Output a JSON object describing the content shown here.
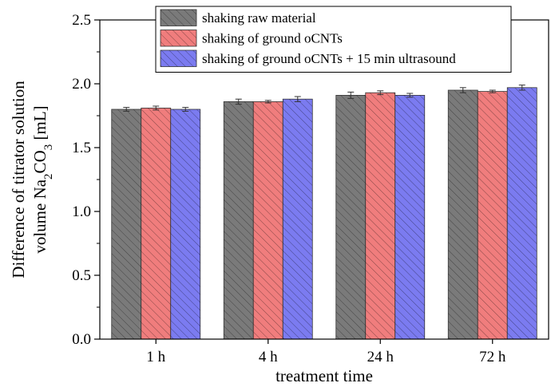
{
  "chart_data": {
    "type": "bar",
    "title": "",
    "xlabel": "treatment time",
    "ylabel": {
      "line1": "Difference of titrator solution",
      "line2_prefix": "volume Na",
      "sub1": "2",
      "mid": "CO",
      "sub2": "3",
      "suffix": " [mL]"
    },
    "categories": [
      "1 h",
      "4 h",
      "24 h",
      "72 h"
    ],
    "ylim": [
      0.0,
      2.5
    ],
    "yticks": [
      "0.0",
      "0.5",
      "1.0",
      "1.5",
      "2.0",
      "2.5"
    ],
    "legend_position": "top-center",
    "grid": false,
    "series": [
      {
        "name": "shaking raw material",
        "color": "#7a7a7a",
        "values": [
          1.8,
          1.86,
          1.91,
          1.95
        ],
        "errors": [
          0.015,
          0.02,
          0.025,
          0.02
        ]
      },
      {
        "name": "shaking of ground oCNTs",
        "color": "#f07d7d",
        "values": [
          1.81,
          1.86,
          1.93,
          1.94
        ],
        "errors": [
          0.015,
          0.01,
          0.015,
          0.01
        ]
      },
      {
        "name": "shaking of ground oCNTs + 15 min ultrasound",
        "color": "#7b7bf0",
        "values": [
          1.8,
          1.88,
          1.91,
          1.97
        ],
        "errors": [
          0.015,
          0.02,
          0.015,
          0.02
        ]
      }
    ]
  }
}
